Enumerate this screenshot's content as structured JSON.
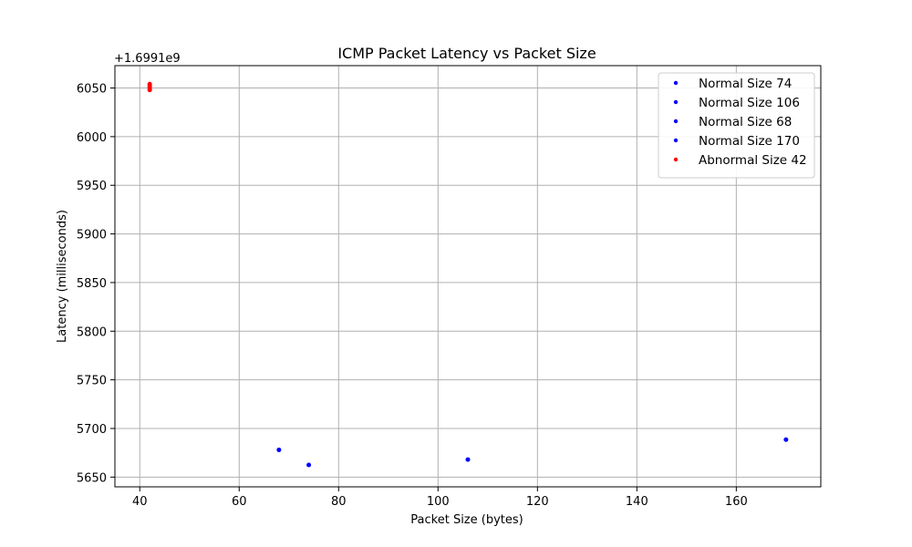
{
  "chart_data": {
    "type": "scatter",
    "title": "ICMP Packet Latency vs Packet Size",
    "xlabel": "Packet Size (bytes)",
    "ylabel": "Latency (milliseconds)",
    "y_offset_label": "+1.6991e9",
    "xlim": [
      35,
      177
    ],
    "ylim": [
      5640,
      6073
    ],
    "xticks": [
      40,
      60,
      80,
      100,
      120,
      140,
      160
    ],
    "yticks": [
      5650,
      5700,
      5750,
      5800,
      5850,
      5900,
      5950,
      6000,
      6050
    ],
    "grid": true,
    "legend_position": "top-right",
    "series": [
      {
        "name": "Normal Size 74",
        "color": "#0000ff",
        "points": [
          {
            "x": 74,
            "y": 5662.5
          }
        ]
      },
      {
        "name": "Normal Size 106",
        "color": "#0000ff",
        "points": [
          {
            "x": 106,
            "y": 5668
          }
        ]
      },
      {
        "name": "Normal Size 68",
        "color": "#0000ff",
        "points": [
          {
            "x": 68,
            "y": 5678
          }
        ]
      },
      {
        "name": "Normal Size 170",
        "color": "#0000ff",
        "points": [
          {
            "x": 170,
            "y": 5688.5
          }
        ]
      },
      {
        "name": "Abnormal Size 42",
        "color": "#ff0000",
        "points": [
          {
            "x": 42,
            "y": 6048
          },
          {
            "x": 42,
            "y": 6050
          },
          {
            "x": 42,
            "y": 6052
          },
          {
            "x": 42,
            "y": 6054
          }
        ]
      }
    ]
  }
}
